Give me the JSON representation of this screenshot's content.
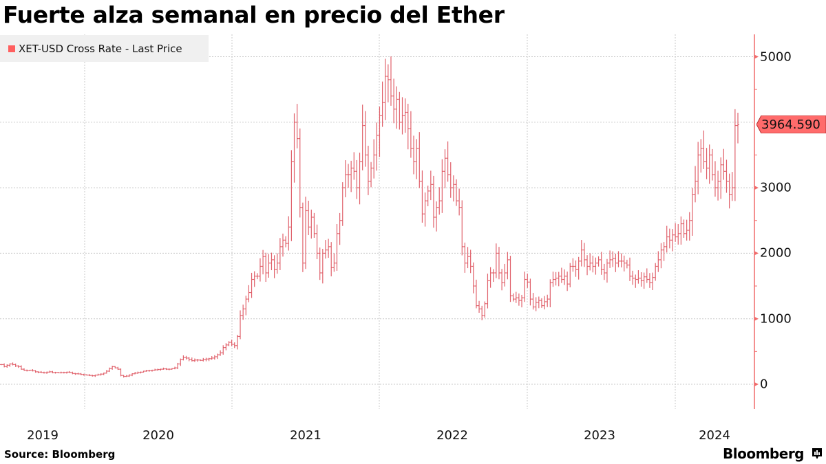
{
  "header": {
    "title": "Fuerte alza semanal en precio del Ether"
  },
  "legend": {
    "label": "XET-USD Cross Rate - Last Price",
    "color": "#ff5f5f"
  },
  "last_price_tag": {
    "value": "3964.590",
    "color": "#ff6b6b"
  },
  "footer": {
    "source": "Source:  Bloomberg",
    "brand": "Bloomberg"
  },
  "axis": {
    "y_ticks": [
      "0",
      "1000",
      "2000",
      "3000",
      "5000"
    ],
    "x_ticks": [
      "2019",
      "2020",
      "2021",
      "2022",
      "2023",
      "2024"
    ]
  },
  "colors": {
    "series": "#e0606a",
    "axis": "#f06a6a",
    "grid": "#c8c8c8",
    "legend_bg": "#f0f0f0"
  },
  "chart_data": {
    "type": "ohlc",
    "title": "Fuerte alza semanal en precio del Ether",
    "series_name": "XET-USD Cross Rate - Last Price",
    "frequency": "weekly",
    "xlabel": "",
    "ylabel": "",
    "ylim": [
      -350,
      5350
    ],
    "y_ticks": [
      0,
      1000,
      2000,
      3000,
      4000,
      5000
    ],
    "y_tick_labels_shown": [
      0,
      1000,
      2000,
      3000,
      5000
    ],
    "x_ticks": [
      "2019",
      "2020",
      "2021",
      "2022",
      "2023",
      "2024"
    ],
    "grid": true,
    "legend_position": "top-left",
    "last_value": 3964.59,
    "start_approx": "2019-06",
    "end_approx": "2024-03",
    "weekly_close_approx": [
      300,
      270,
      290,
      310,
      300,
      280,
      270,
      230,
      215,
      210,
      215,
      205,
      190,
      185,
      180,
      175,
      185,
      190,
      178,
      180,
      175,
      178,
      180,
      185,
      180,
      165,
      160,
      158,
      150,
      145,
      140,
      135,
      130,
      140,
      145,
      155,
      170,
      200,
      240,
      270,
      250,
      230,
      135,
      120,
      125,
      140,
      160,
      170,
      180,
      185,
      200,
      205,
      210,
      215,
      220,
      225,
      230,
      235,
      230,
      230,
      240,
      250,
      310,
      380,
      410,
      400,
      380,
      360,
      370,
      370,
      365,
      375,
      385,
      390,
      400,
      420,
      450,
      480,
      560,
      600,
      640,
      610,
      590,
      730,
      1050,
      1150,
      1300,
      1400,
      1600,
      1650,
      1650,
      1800,
      1950,
      1700,
      1850,
      1900,
      1750,
      1850,
      2100,
      2200,
      2150,
      2400,
      3400,
      4000,
      3750,
      2700,
      1850,
      2650,
      2400,
      2550,
      2300,
      2000,
      1700,
      2000,
      2050,
      2100,
      1780,
      1850,
      2300,
      2500,
      3000,
      3200,
      3200,
      3300,
      3250,
      3000,
      3400,
      3950,
      3500,
      3100,
      3300,
      3500,
      3800,
      4100,
      4300,
      4700,
      4650,
      4400,
      4200,
      4350,
      4000,
      4100,
      4150,
      3900,
      3600,
      3400,
      3600,
      3100,
      2600,
      2800,
      2950,
      3050,
      2550,
      2700,
      2800,
      3250,
      3450,
      3200,
      3000,
      3050,
      2800,
      2700,
      2100,
      1850,
      1950,
      1800,
      1500,
      1200,
      1150,
      1050,
      1230,
      1580,
      1700,
      1700,
      2000,
      1700,
      1550,
      1700,
      1900,
      1350,
      1300,
      1320,
      1280,
      1320,
      1600,
      1560,
      1300,
      1180,
      1250,
      1280,
      1200,
      1260,
      1300,
      1550,
      1600,
      1620,
      1650,
      1600,
      1650,
      1530,
      1800,
      1800,
      1750,
      1880,
      2050,
      1900,
      1800,
      1850,
      1800,
      1850,
      1900,
      1750,
      1700,
      1850,
      1900,
      1920,
      1850,
      1880,
      1880,
      1850,
      1820,
      1650,
      1620,
      1600,
      1620,
      1580,
      1640,
      1600,
      1550,
      1630,
      1800,
      1900,
      2050,
      2100,
      2250,
      2200,
      2280,
      2250,
      2300,
      2450,
      2300,
      2350,
      2500,
      2900,
      3100,
      3500,
      3600,
      3400,
      3300,
      3500,
      3200,
      3000,
      3100,
      3350,
      3250,
      3100,
      2900,
      3000,
      3950,
      3964.59
    ]
  }
}
